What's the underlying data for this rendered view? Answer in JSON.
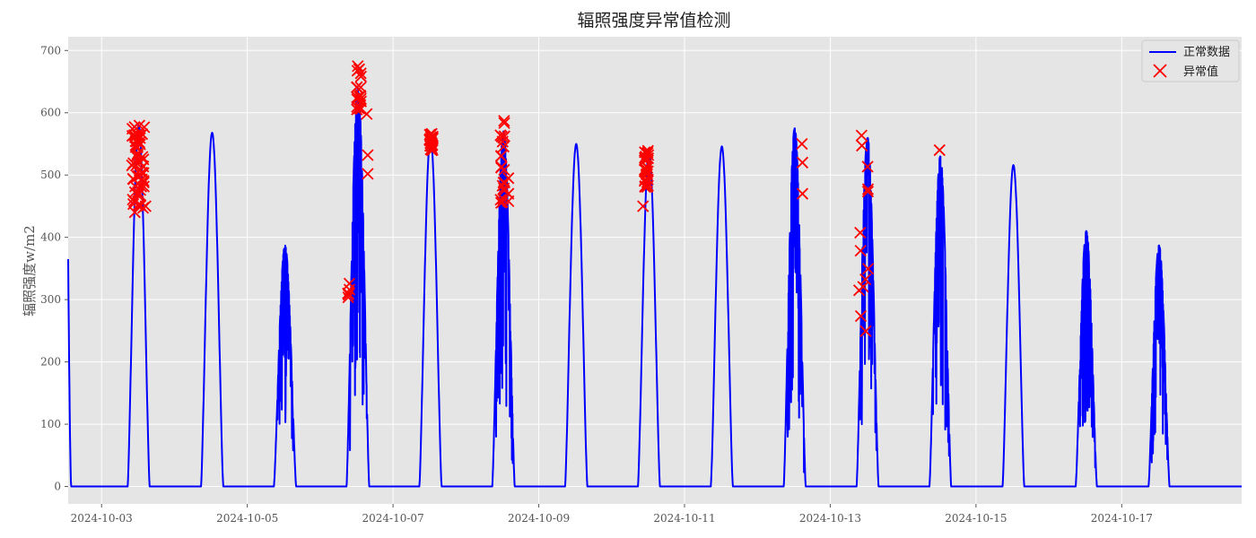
{
  "chart_data": {
    "type": "line",
    "title": "辐照强度异常值检测",
    "xlabel": "",
    "ylabel": "辐照强度w/m2",
    "x_start": "2024-10-02T13:00",
    "x_end": "2024-10-18T15:30",
    "ylim": [
      -28,
      722
    ],
    "y_ticks": [
      0,
      100,
      200,
      300,
      400,
      500,
      600,
      700
    ],
    "x_ticks": [
      "2024-10-03",
      "2024-10-05",
      "2024-10-07",
      "2024-10-09",
      "2024-10-11",
      "2024-10-13",
      "2024-10-15",
      "2024-10-17"
    ],
    "grid": true,
    "legend_position": "upper-right",
    "colors": {
      "normal": "#0000ff",
      "anomaly": "#ff0000",
      "plot_bg": "#e5e5e5",
      "grid": "#ffffff"
    },
    "series": [
      {
        "name": "正常数据",
        "kind": "line",
        "daily_profile": [
          {
            "date": "2024-10-03",
            "rise": "08:35",
            "set": "15:50",
            "peak": 580
          },
          {
            "date": "2024-10-04",
            "rise": "08:45",
            "set": "16:05",
            "peak": 568
          },
          {
            "date": "2024-10-05",
            "rise": "08:45",
            "set": "16:05",
            "peak": 387,
            "noisy": true
          },
          {
            "date": "2024-10-06",
            "rise": "08:40",
            "set": "16:10",
            "peak": 640,
            "noisy": true
          },
          {
            "date": "2024-10-07",
            "rise": "08:40",
            "set": "16:00",
            "peak": 563
          },
          {
            "date": "2024-10-08",
            "rise": "08:40",
            "set": "16:05",
            "peak": 570,
            "noisy": true
          },
          {
            "date": "2024-10-09",
            "rise": "08:40",
            "set": "16:00",
            "peak": 550
          },
          {
            "date": "2024-10-10",
            "rise": "08:40",
            "set": "15:55",
            "peak": 540
          },
          {
            "date": "2024-10-11",
            "rise": "08:40",
            "set": "15:55",
            "peak": 546
          },
          {
            "date": "2024-10-12",
            "rise": "08:40",
            "set": "15:55",
            "peak": 575,
            "noisy": true
          },
          {
            "date": "2024-10-13",
            "rise": "08:40",
            "set": "15:55",
            "peak": 560,
            "noisy": true
          },
          {
            "date": "2024-10-14",
            "rise": "08:40",
            "set": "15:50",
            "peak": 530,
            "noisy": true
          },
          {
            "date": "2024-10-15",
            "rise": "08:45",
            "set": "15:55",
            "peak": 516
          },
          {
            "date": "2024-10-16",
            "rise": "08:50",
            "set": "15:50",
            "peak": 410,
            "noisy": true
          },
          {
            "date": "2024-10-17",
            "rise": "08:50",
            "set": "15:45",
            "peak": 387,
            "noisy": true
          }
        ]
      },
      {
        "name": "异常值",
        "kind": "scatter",
        "marker": "x",
        "clusters": [
          {
            "date": "2024-10-03",
            "from": "10:00",
            "to": "14:10",
            "y_min": 440,
            "y_max": 585,
            "count": 60
          },
          {
            "date": "2024-10-06",
            "from": "09:00",
            "to": "09:40",
            "y_min": 290,
            "y_max": 335,
            "count": 6
          },
          {
            "date": "2024-10-06",
            "from": "12:00",
            "to": "13:30",
            "y_min": 600,
            "y_max": 678,
            "count": 18
          },
          {
            "date": "2024-10-07",
            "from": "12:00",
            "to": "13:10",
            "y_min": 540,
            "y_max": 567,
            "count": 22
          },
          {
            "date": "2024-10-08",
            "from": "11:20",
            "to": "12:50",
            "y_min": 452,
            "y_max": 595,
            "count": 22
          },
          {
            "date": "2024-10-10",
            "from": "10:50",
            "to": "12:10",
            "y_min": 480,
            "y_max": 540,
            "count": 28
          },
          {
            "date": "2024-10-13",
            "from": "09:30",
            "to": "12:30",
            "y_min": 220,
            "y_max": 565,
            "count": 12
          }
        ],
        "points": [
          {
            "t": "2024-10-03T14:30",
            "y": 450
          },
          {
            "t": "2024-10-06T15:20",
            "y": 598
          },
          {
            "t": "2024-10-06T15:40",
            "y": 532
          },
          {
            "t": "2024-10-06T15:40",
            "y": 502
          },
          {
            "t": "2024-10-08T14:00",
            "y": 495
          },
          {
            "t": "2024-10-08T14:00",
            "y": 470
          },
          {
            "t": "2024-10-08T14:00",
            "y": 458
          },
          {
            "t": "2024-10-10T10:20",
            "y": 450
          },
          {
            "t": "2024-10-12T14:40",
            "y": 550
          },
          {
            "t": "2024-10-12T14:50",
            "y": 520
          },
          {
            "t": "2024-10-12T14:50",
            "y": 470
          },
          {
            "t": "2024-10-14T12:00",
            "y": 540
          },
          {
            "t": "2024-10-13T09:30",
            "y": 315
          }
        ]
      }
    ]
  }
}
